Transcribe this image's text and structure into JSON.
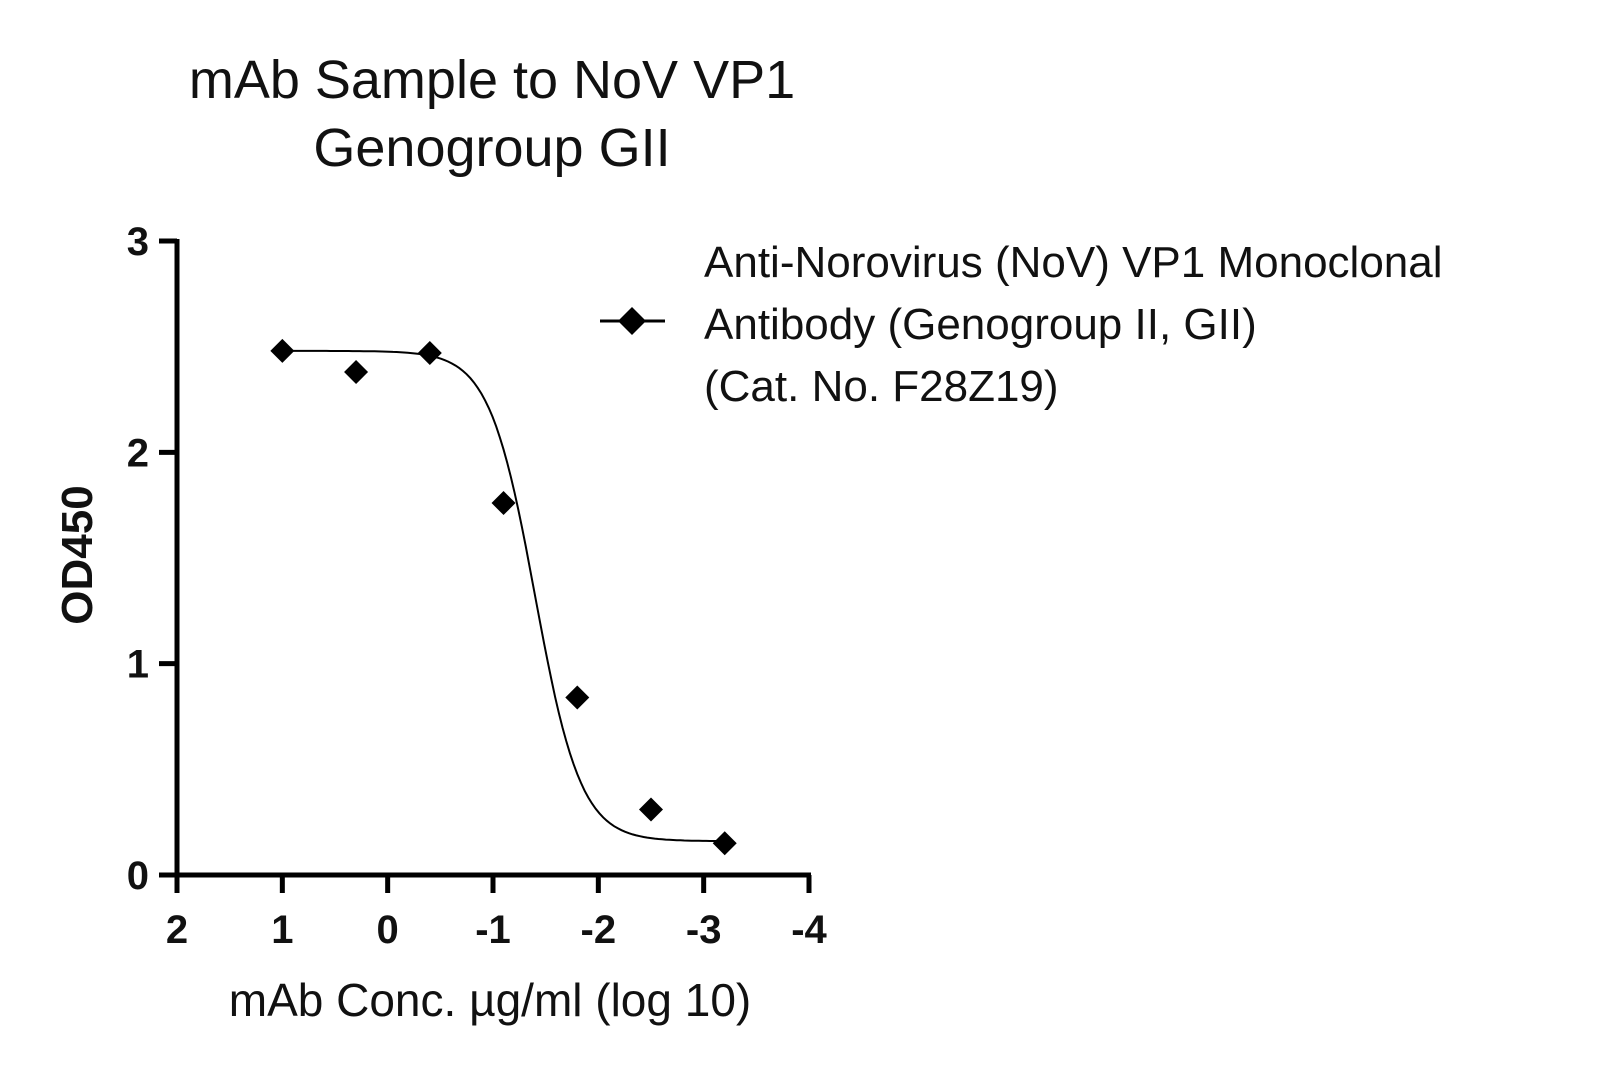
{
  "chart_data": {
    "type": "scatter",
    "title": [
      "mAb Sample to NoV VP1",
      "Genogroup GII"
    ],
    "xlabel": "mAb Conc. µg/ml (log 10)",
    "ylabel": "OD450",
    "xlim": [
      2,
      -4
    ],
    "ylim": [
      0,
      3
    ],
    "x_ticks": [
      "2",
      "1",
      "0",
      "-1",
      "-2",
      "-3",
      "-4"
    ],
    "y_ticks": [
      "0",
      "1",
      "2",
      "3"
    ],
    "series": [
      {
        "name": [
          "Anti-Norovirus (NoV) VP1 Monoclonal",
          "Antibody (Genogroup II, GII)",
          "(Cat. No. F28Z19)"
        ],
        "marker": "diamond",
        "color": "#000000",
        "x": [
          1.0,
          0.3,
          -0.4,
          -1.1,
          -1.8,
          -2.5,
          -3.2
        ],
        "y": [
          2.48,
          2.38,
          2.47,
          1.76,
          0.84,
          0.31,
          0.15
        ]
      }
    ],
    "fit_curve": {
      "model": "4PL",
      "top": 2.48,
      "bottom": 0.16,
      "log_ec50": -1.4,
      "hill": 2.0,
      "x_range": [
        1.0,
        -3.2
      ]
    }
  }
}
